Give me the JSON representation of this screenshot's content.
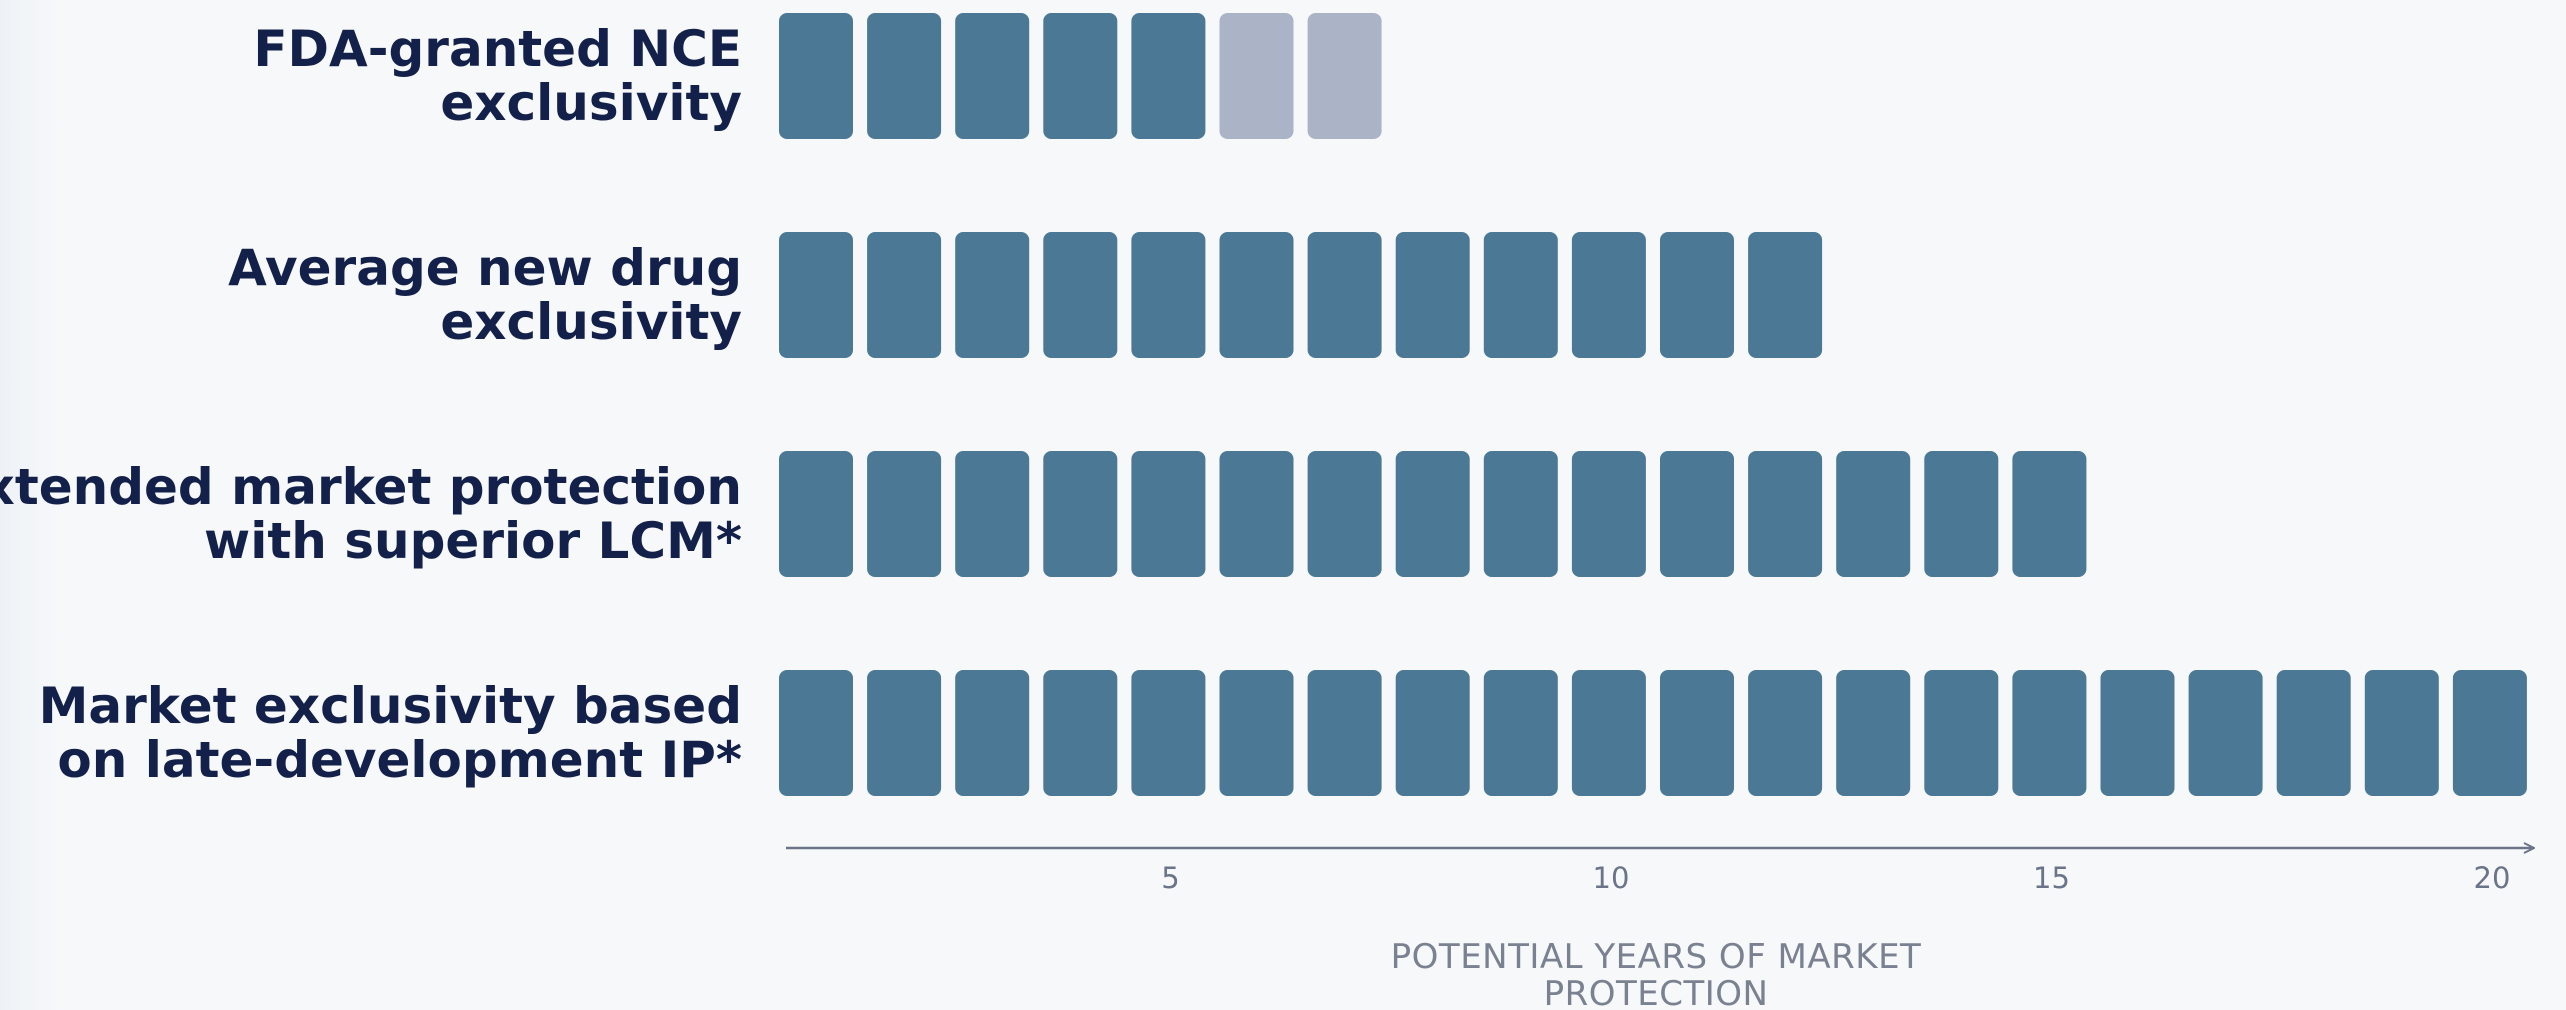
{
  "colors": {
    "filled": "#4a7895",
    "faded": "#abb4c6",
    "label": "#13214a",
    "axis": "#6b7488"
  },
  "chart_data": {
    "type": "bar",
    "unit_style": "stacked year blocks",
    "categories": [
      [
        "FDA-granted NCE",
        "exclusivity"
      ],
      [
        "Average new drug",
        "exclusivity"
      ],
      [
        "Extended market protection",
        "with superior LCM*"
      ],
      [
        "Market exclusivity based",
        "on late-development IP*"
      ]
    ],
    "series": [
      {
        "values": [
          5,
          12,
          15,
          20
        ]
      },
      {
        "values": [
          2,
          0,
          0,
          0
        ]
      }
    ],
    "series_colors": [
      "filled",
      "faded"
    ],
    "xlim": [
      0,
      20
    ],
    "xticks": [
      5,
      10,
      15,
      20
    ],
    "xlabel": [
      "POTENTIAL YEARS OF MARKET",
      "PROTECTION"
    ],
    "legend": "none",
    "grid": false
  }
}
